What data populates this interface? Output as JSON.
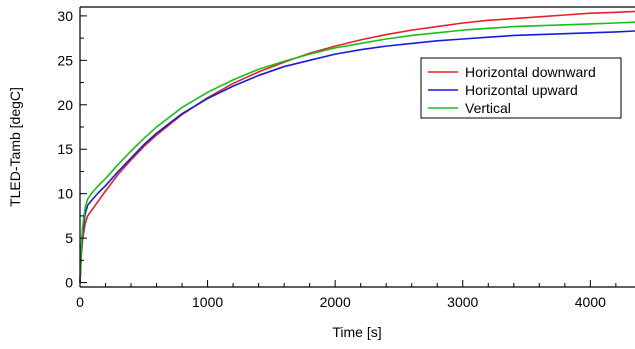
{
  "chart_data": {
    "type": "line",
    "title": "",
    "xlabel": "Time [s]",
    "ylabel": "TLED-Tamb [degC]",
    "xlim": [
      0,
      4350
    ],
    "ylim": [
      -0.5,
      31
    ],
    "x_ticks": [
      0,
      1000,
      2000,
      3000,
      4000
    ],
    "y_ticks": [
      0,
      5,
      10,
      15,
      20,
      25,
      30
    ],
    "grid": false,
    "legend_position": "top-right",
    "series": [
      {
        "name": "Horizontal downward",
        "color": "#e8202a",
        "x": [
          0,
          10,
          20,
          40,
          60,
          100,
          150,
          200,
          300,
          400,
          500,
          600,
          800,
          1000,
          1200,
          1400,
          1600,
          1800,
          2000,
          2200,
          2400,
          2600,
          2800,
          3000,
          3200,
          3400,
          3600,
          3800,
          4000,
          4200,
          4350
        ],
        "values": [
          0,
          3.0,
          4.8,
          6.6,
          7.5,
          8.3,
          9.3,
          10.3,
          12.2,
          13.8,
          15.3,
          16.6,
          18.9,
          20.8,
          22.4,
          23.7,
          24.8,
          25.8,
          26.6,
          27.3,
          27.9,
          28.4,
          28.8,
          29.2,
          29.5,
          29.7,
          29.9,
          30.1,
          30.3,
          30.4,
          30.5
        ]
      },
      {
        "name": "Horizontal upward",
        "color": "#1a1adc",
        "x": [
          0,
          10,
          20,
          40,
          60,
          100,
          150,
          200,
          300,
          400,
          500,
          600,
          800,
          1000,
          1200,
          1400,
          1600,
          1800,
          2000,
          2200,
          2400,
          2600,
          2800,
          3000,
          3200,
          3400,
          3600,
          3800,
          4000,
          4200,
          4350
        ],
        "values": [
          0,
          3.5,
          5.6,
          7.7,
          8.7,
          9.4,
          10.2,
          10.9,
          12.5,
          14.0,
          15.5,
          16.8,
          19.0,
          20.7,
          22.1,
          23.3,
          24.3,
          25.0,
          25.7,
          26.2,
          26.6,
          26.9,
          27.2,
          27.4,
          27.6,
          27.8,
          27.9,
          28.0,
          28.1,
          28.2,
          28.3
        ]
      },
      {
        "name": "Vertical",
        "color": "#16c21a",
        "x": [
          0,
          10,
          20,
          40,
          60,
          100,
          150,
          200,
          300,
          400,
          500,
          600,
          800,
          1000,
          1200,
          1400,
          1600,
          1800,
          2000,
          2200,
          2400,
          2600,
          2800,
          3000,
          3200,
          3400,
          3600,
          3800,
          4000,
          4200,
          4350
        ],
        "values": [
          0,
          4.0,
          6.2,
          8.4,
          9.4,
          10.2,
          11.0,
          11.7,
          13.3,
          14.8,
          16.2,
          17.5,
          19.7,
          21.4,
          22.8,
          24.0,
          24.9,
          25.7,
          26.4,
          26.9,
          27.4,
          27.8,
          28.1,
          28.4,
          28.6,
          28.8,
          28.9,
          29.0,
          29.1,
          29.2,
          29.3
        ]
      }
    ]
  }
}
